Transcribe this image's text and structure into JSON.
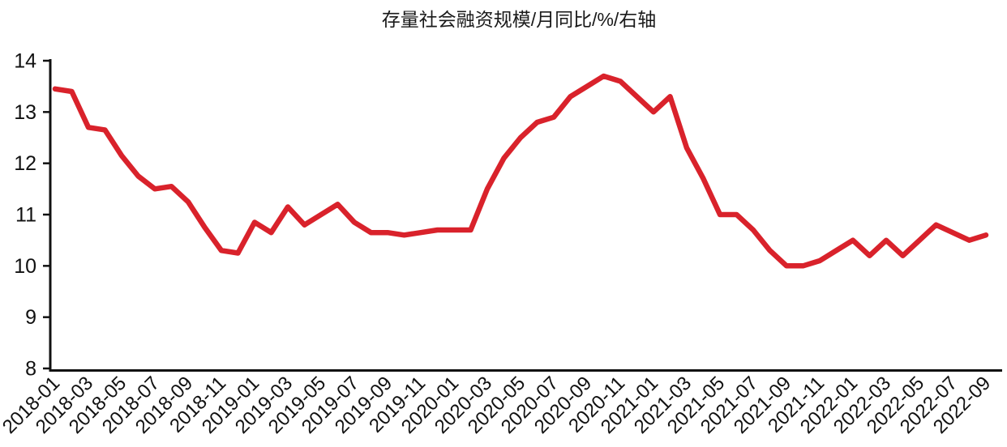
{
  "chart_data": {
    "type": "line",
    "title": "存量社会融资规模/月同比/%/右轴",
    "categories": [
      "2018-01",
      "2018-02",
      "2018-03",
      "2018-04",
      "2018-05",
      "2018-06",
      "2018-07",
      "2018-08",
      "2018-09",
      "2018-10",
      "2018-11",
      "2018-12",
      "2019-01",
      "2019-02",
      "2019-03",
      "2019-04",
      "2019-05",
      "2019-06",
      "2019-07",
      "2019-08",
      "2019-09",
      "2019-10",
      "2019-11",
      "2019-12",
      "2020-01",
      "2020-02",
      "2020-03",
      "2020-04",
      "2020-05",
      "2020-06",
      "2020-07",
      "2020-08",
      "2020-09",
      "2020-10",
      "2020-11",
      "2020-12",
      "2021-01",
      "2021-02",
      "2021-03",
      "2021-04",
      "2021-05",
      "2021-06",
      "2021-07",
      "2021-08",
      "2021-09",
      "2021-10",
      "2021-11",
      "2021-12",
      "2022-01",
      "2022-02",
      "2022-03",
      "2022-04",
      "2022-05",
      "2022-06",
      "2022-07",
      "2022-08",
      "2022-09"
    ],
    "values": [
      13.45,
      13.4,
      12.7,
      12.65,
      12.15,
      11.75,
      11.5,
      11.55,
      11.25,
      10.75,
      10.3,
      10.25,
      10.85,
      10.65,
      11.15,
      10.8,
      11.0,
      11.2,
      10.85,
      10.65,
      10.65,
      10.6,
      10.65,
      10.7,
      10.7,
      10.7,
      11.5,
      12.1,
      12.5,
      12.8,
      12.9,
      13.3,
      13.5,
      13.7,
      13.6,
      13.3,
      13.0,
      13.3,
      12.3,
      11.7,
      11.0,
      11.0,
      10.7,
      10.3,
      10.0,
      10.0,
      10.1,
      10.3,
      10.5,
      10.2,
      10.5,
      10.2,
      10.5,
      10.8,
      10.65,
      10.5,
      10.6
    ],
    "xlabel": "",
    "ylabel": "",
    "ylim": [
      8,
      14
    ],
    "ytick_step": 1,
    "ytick_labels": [
      "8",
      "9",
      "10",
      "11",
      "12",
      "13",
      "14"
    ],
    "xtick_every": 2,
    "xtick_rotation_deg": 45,
    "grid": false,
    "line_color": "#d9222b",
    "axis_color": "#111111",
    "text_color": "#111111"
  }
}
